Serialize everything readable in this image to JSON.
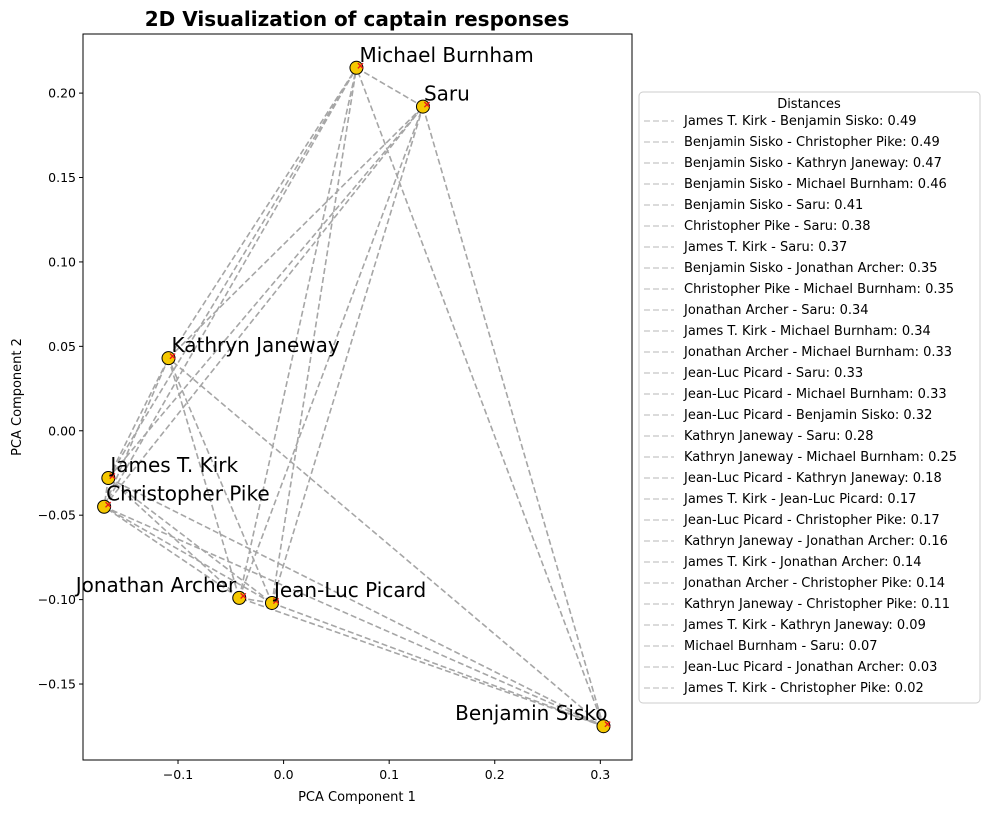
{
  "chart_data": {
    "type": "scatter",
    "title": "2D Visualization of captain responses",
    "xlabel": "PCA Component 1",
    "ylabel": "PCA Component 2",
    "xlim": [
      -0.19,
      0.33
    ],
    "ylim": [
      -0.195,
      0.235
    ],
    "xticks": [
      -0.1,
      0.0,
      0.1,
      0.2,
      0.3
    ],
    "xtick_labels": [
      "−0.1",
      "0.0",
      "0.1",
      "0.2",
      "0.3"
    ],
    "yticks": [
      -0.15,
      -0.1,
      -0.05,
      0.0,
      0.05,
      0.1,
      0.15,
      0.2
    ],
    "ytick_labels": [
      "−0.15",
      "−0.10",
      "−0.05",
      "0.00",
      "0.05",
      "0.10",
      "0.15",
      "0.20"
    ],
    "grid": false,
    "point_color": "#f5c800",
    "marker_color": "#e8161c",
    "line_color": "#a6a6a6",
    "points": [
      {
        "name": "Michael Burnham",
        "x": 0.069,
        "y": 0.215
      },
      {
        "name": "Saru",
        "x": 0.132,
        "y": 0.192
      },
      {
        "name": "Kathryn Janeway",
        "x": -0.109,
        "y": 0.043
      },
      {
        "name": "James T. Kirk",
        "x": -0.166,
        "y": -0.028
      },
      {
        "name": "Christopher Pike",
        "x": -0.17,
        "y": -0.045
      },
      {
        "name": "Jonathan Archer",
        "x": -0.042,
        "y": -0.099
      },
      {
        "name": "Jean-Luc Picard",
        "x": -0.011,
        "y": -0.102
      },
      {
        "name": "Benjamin Sisko",
        "x": 0.303,
        "y": -0.175
      }
    ],
    "legend": {
      "title": "Distances",
      "placement": "center-right, outside",
      "entries": [
        {
          "pair": [
            "James T. Kirk",
            "Benjamin Sisko"
          ],
          "distance": 0.49,
          "label": "James T. Kirk - Benjamin Sisko: 0.49"
        },
        {
          "pair": [
            "Benjamin Sisko",
            "Christopher Pike"
          ],
          "distance": 0.49,
          "label": "Benjamin Sisko - Christopher Pike: 0.49"
        },
        {
          "pair": [
            "Benjamin Sisko",
            "Kathryn Janeway"
          ],
          "distance": 0.47,
          "label": "Benjamin Sisko - Kathryn Janeway: 0.47"
        },
        {
          "pair": [
            "Benjamin Sisko",
            "Michael Burnham"
          ],
          "distance": 0.46,
          "label": "Benjamin Sisko - Michael Burnham: 0.46"
        },
        {
          "pair": [
            "Benjamin Sisko",
            "Saru"
          ],
          "distance": 0.41,
          "label": "Benjamin Sisko - Saru: 0.41"
        },
        {
          "pair": [
            "Christopher Pike",
            "Saru"
          ],
          "distance": 0.38,
          "label": "Christopher Pike - Saru: 0.38"
        },
        {
          "pair": [
            "James T. Kirk",
            "Saru"
          ],
          "distance": 0.37,
          "label": "James T. Kirk - Saru: 0.37"
        },
        {
          "pair": [
            "Benjamin Sisko",
            "Jonathan Archer"
          ],
          "distance": 0.35,
          "label": "Benjamin Sisko - Jonathan Archer: 0.35"
        },
        {
          "pair": [
            "Christopher Pike",
            "Michael Burnham"
          ],
          "distance": 0.35,
          "label": "Christopher Pike - Michael Burnham: 0.35"
        },
        {
          "pair": [
            "Jonathan Archer",
            "Saru"
          ],
          "distance": 0.34,
          "label": "Jonathan Archer - Saru: 0.34"
        },
        {
          "pair": [
            "James T. Kirk",
            "Michael Burnham"
          ],
          "distance": 0.34,
          "label": "James T. Kirk - Michael Burnham: 0.34"
        },
        {
          "pair": [
            "Jonathan Archer",
            "Michael Burnham"
          ],
          "distance": 0.33,
          "label": "Jonathan Archer - Michael Burnham: 0.33"
        },
        {
          "pair": [
            "Jean-Luc Picard",
            "Saru"
          ],
          "distance": 0.33,
          "label": "Jean-Luc Picard - Saru: 0.33"
        },
        {
          "pair": [
            "Jean-Luc Picard",
            "Michael Burnham"
          ],
          "distance": 0.33,
          "label": "Jean-Luc Picard - Michael Burnham: 0.33"
        },
        {
          "pair": [
            "Jean-Luc Picard",
            "Benjamin Sisko"
          ],
          "distance": 0.32,
          "label": "Jean-Luc Picard - Benjamin Sisko: 0.32"
        },
        {
          "pair": [
            "Kathryn Janeway",
            "Saru"
          ],
          "distance": 0.28,
          "label": "Kathryn Janeway - Saru: 0.28"
        },
        {
          "pair": [
            "Kathryn Janeway",
            "Michael Burnham"
          ],
          "distance": 0.25,
          "label": "Kathryn Janeway - Michael Burnham: 0.25"
        },
        {
          "pair": [
            "Jean-Luc Picard",
            "Kathryn Janeway"
          ],
          "distance": 0.18,
          "label": "Jean-Luc Picard - Kathryn Janeway: 0.18"
        },
        {
          "pair": [
            "James T. Kirk",
            "Jean-Luc Picard"
          ],
          "distance": 0.17,
          "label": "James T. Kirk - Jean-Luc Picard: 0.17"
        },
        {
          "pair": [
            "Jean-Luc Picard",
            "Christopher Pike"
          ],
          "distance": 0.17,
          "label": "Jean-Luc Picard - Christopher Pike: 0.17"
        },
        {
          "pair": [
            "Kathryn Janeway",
            "Jonathan Archer"
          ],
          "distance": 0.16,
          "label": "Kathryn Janeway - Jonathan Archer: 0.16"
        },
        {
          "pair": [
            "James T. Kirk",
            "Jonathan Archer"
          ],
          "distance": 0.14,
          "label": "James T. Kirk - Jonathan Archer: 0.14"
        },
        {
          "pair": [
            "Jonathan Archer",
            "Christopher Pike"
          ],
          "distance": 0.14,
          "label": "Jonathan Archer - Christopher Pike: 0.14"
        },
        {
          "pair": [
            "Kathryn Janeway",
            "Christopher Pike"
          ],
          "distance": 0.11,
          "label": "Kathryn Janeway - Christopher Pike: 0.11"
        },
        {
          "pair": [
            "James T. Kirk",
            "Kathryn Janeway"
          ],
          "distance": 0.09,
          "label": "James T. Kirk - Kathryn Janeway: 0.09"
        },
        {
          "pair": [
            "Michael Burnham",
            "Saru"
          ],
          "distance": 0.07,
          "label": "Michael Burnham - Saru: 0.07"
        },
        {
          "pair": [
            "Jean-Luc Picard",
            "Jonathan Archer"
          ],
          "distance": 0.03,
          "label": "Jean-Luc Picard - Jonathan Archer: 0.03"
        },
        {
          "pair": [
            "James T. Kirk",
            "Christopher Pike"
          ],
          "distance": 0.02,
          "label": "James T. Kirk - Christopher Pike: 0.02"
        }
      ]
    }
  }
}
